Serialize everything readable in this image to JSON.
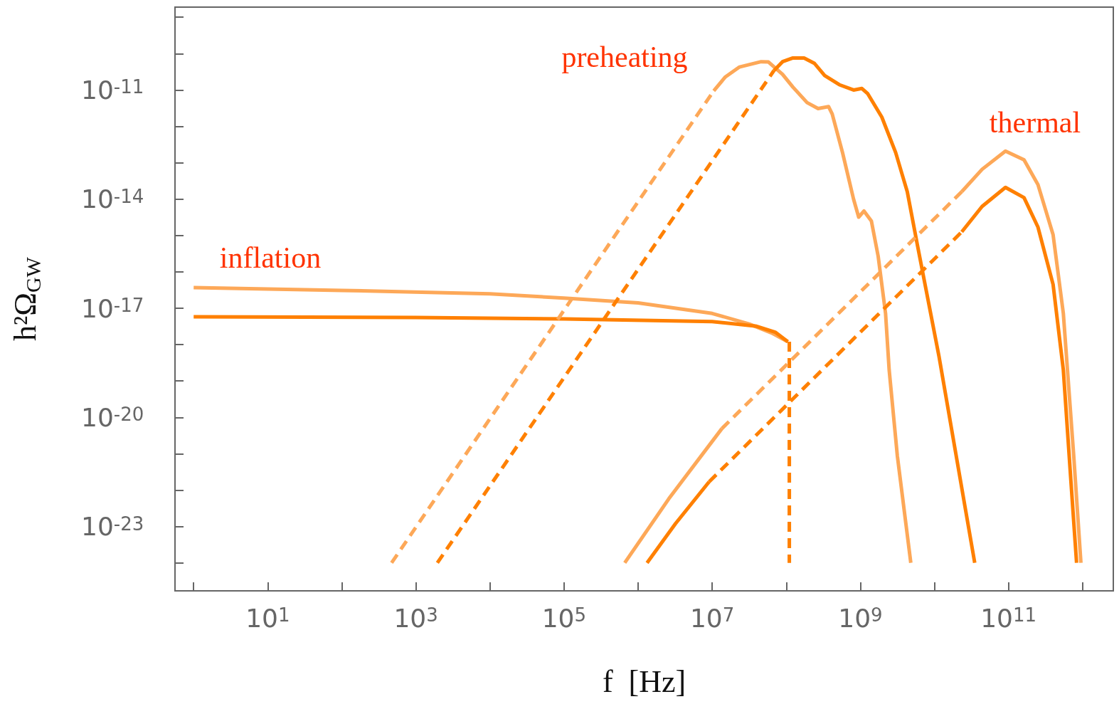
{
  "chart_data": {
    "type": "line",
    "xlabel": "f  [Hz]",
    "ylabel": "h²Ω$_{GW}$",
    "log": "xy",
    "marker": "none",
    "xlim": [
      0.56,
      2600000000000.0
    ],
    "ylim": [
      1.7e-25,
      1.9e-09
    ],
    "xticks": [
      {
        "value": 1,
        "label": null
      },
      {
        "value": 10,
        "label": "10$^{1}$"
      },
      {
        "value": 100,
        "label": null
      },
      {
        "value": 1000,
        "label": "10$^{3}$"
      },
      {
        "value": 10000,
        "label": null
      },
      {
        "value": 100000,
        "label": "10$^{5}$"
      },
      {
        "value": 1000000,
        "label": null
      },
      {
        "value": 10000000,
        "label": "10$^{7}$"
      },
      {
        "value": 100000000,
        "label": null
      },
      {
        "value": 1000000000,
        "label": "10$^{9}$"
      },
      {
        "value": 10000000000,
        "label": null
      },
      {
        "value": 100000000000,
        "label": "10$^{11}$"
      },
      {
        "value": 1000000000000,
        "label": null
      }
    ],
    "yticks": [
      {
        "value": 1e-24,
        "label": null
      },
      {
        "value": 1e-23,
        "label": "10$^{-23}$"
      },
      {
        "value": 1e-22,
        "label": null
      },
      {
        "value": 1e-21,
        "label": null
      },
      {
        "value": 1e-20,
        "label": "10$^{-20}$"
      },
      {
        "value": 1e-19,
        "label": null
      },
      {
        "value": 1e-18,
        "label": null
      },
      {
        "value": 1e-17,
        "label": "10$^{-17}$"
      },
      {
        "value": 1e-16,
        "label": null
      },
      {
        "value": 1e-15,
        "label": null
      },
      {
        "value": 1e-14,
        "label": "10$^{-14}$"
      },
      {
        "value": 1e-13,
        "label": null
      },
      {
        "value": 1e-12,
        "label": null
      },
      {
        "value": 1e-11,
        "label": "10$^{-11}$"
      },
      {
        "value": 1e-10,
        "label": null
      },
      {
        "value": 1e-09,
        "label": null
      }
    ],
    "annotations": [
      "inflation",
      "preheating",
      "thermal"
    ],
    "series": [
      {
        "color": "#fda858",
        "line_style": "solid",
        "x": [
          1,
          100,
          10000,
          100000,
          1000000,
          10000000,
          31600000,
          63100000,
          105000000
        ],
        "values": [
          3.7e-17,
          3.1e-17,
          2.5e-17,
          1.9e-17,
          1.4e-17,
          7.2e-18,
          3.7e-18,
          2.1e-18,
          1.2e-18
        ]
      },
      {
        "color": "#ff8000",
        "line_style": "solid",
        "x": [
          1,
          1000,
          100000,
          10000000,
          39800000,
          70800000,
          105000000
        ],
        "values": [
          5.8e-18,
          5.6e-18,
          5.1e-18,
          4.3e-18,
          3.2e-18,
          2.2e-18,
          1.2e-18
        ]
      },
      {
        "color": "#ff8000",
        "line_style": "dashed",
        "x": [
          110000000,
          110000000
        ],
        "values": [
          1.2e-18,
          1e-24
        ]
      },
      {
        "color": "#fda858",
        "line_style": "dashed",
        "x": [
          470,
          10500000
        ],
        "values": [
          1e-24,
          9.5e-12
        ]
      },
      {
        "color": "#fda858",
        "line_style": "solid",
        "x": [
          10500000,
          15100000,
          23400000,
          45700000,
          57500000,
          89000000,
          123000000,
          191000000,
          269000000,
          372000000,
          417000000,
          575000000,
          810000000,
          950000000,
          1120000000,
          1410000000,
          1740000000,
          2190000000,
          2450000000,
          3160000000,
          4800000000
        ],
        "values": [
          9.5e-12,
          2.3e-11,
          4.3e-11,
          6e-11,
          5.9e-11,
          2.7e-11,
          1.2e-11,
          4.5e-12,
          3.1e-12,
          3.5e-12,
          2.2e-12,
          1.9e-13,
          1e-14,
          3.2e-15,
          4.7e-15,
          2.5e-15,
          2.7e-16,
          7.2e-18,
          2e-19,
          8.7e-22,
          1e-24
        ]
      },
      {
        "color": "#ff8000",
        "line_style": "dashed",
        "x": [
          1950,
          68000000
        ],
        "values": [
          1e-24,
          3.4e-11
        ]
      },
      {
        "color": "#ff8000",
        "line_style": "solid",
        "x": [
          68000000,
          89000000,
          123000000,
          174000000,
          240000000,
          330000000,
          520000000,
          810000000,
          1050000000,
          1260000000,
          1950000000,
          3000000000,
          4300000000,
          5900000000,
          11500000000,
          35000000000
        ],
        "values": [
          3.4e-11,
          6e-11,
          7.6e-11,
          7.6e-11,
          5.4e-11,
          2.5e-11,
          1.4e-11,
          1e-11,
          1.1e-11,
          7.9e-12,
          1.8e-12,
          1.9e-13,
          1.6e-14,
          5.4e-16,
          4.9e-19,
          1e-24
        ]
      },
      {
        "color": "#fda858",
        "line_style": "solid",
        "x": [
          660000,
          2600000,
          13500000
        ],
        "values": [
          1e-24,
          5.8e-23,
          4.9e-21
        ]
      },
      {
        "color": "#fda858",
        "line_style": "dashed",
        "x": [
          13500000,
          23400000000
        ],
        "values": [
          4.9e-21,
          1.6e-14
        ]
      },
      {
        "color": "#fda858",
        "line_style": "solid",
        "x": [
          23400000000,
          44000000000,
          91000000000,
          162000000000,
          250000000000,
          400000000000,
          550000000000,
          760000000000,
          950000000000
        ],
        "values": [
          1.6e-14,
          6.6e-14,
          2.1e-13,
          1.2e-13,
          2.5e-14,
          1.05e-15,
          7.2e-18,
          8.7e-22,
          1e-24
        ]
      },
      {
        "color": "#ff8000",
        "line_style": "solid",
        "x": [
          1320000,
          3200000,
          9100000
        ],
        "values": [
          1e-24,
          1.2e-23,
          1.7e-22
        ]
      },
      {
        "color": "#ff8000",
        "line_style": "dashed",
        "x": [
          9100000,
          23400000000
        ],
        "values": [
          1.7e-22,
          1.26e-15
        ]
      },
      {
        "color": "#ff8000",
        "line_style": "solid",
        "x": [
          23400000000,
          44000000000,
          91000000000,
          162000000000,
          250000000000,
          400000000000,
          550000000000,
          680000000000,
          830000000000
        ],
        "values": [
          1.26e-15,
          6.3e-15,
          2.1e-14,
          1.1e-14,
          1.7e-15,
          4.5e-17,
          2e-19,
          3.5e-22,
          1e-24
        ]
      }
    ]
  }
}
